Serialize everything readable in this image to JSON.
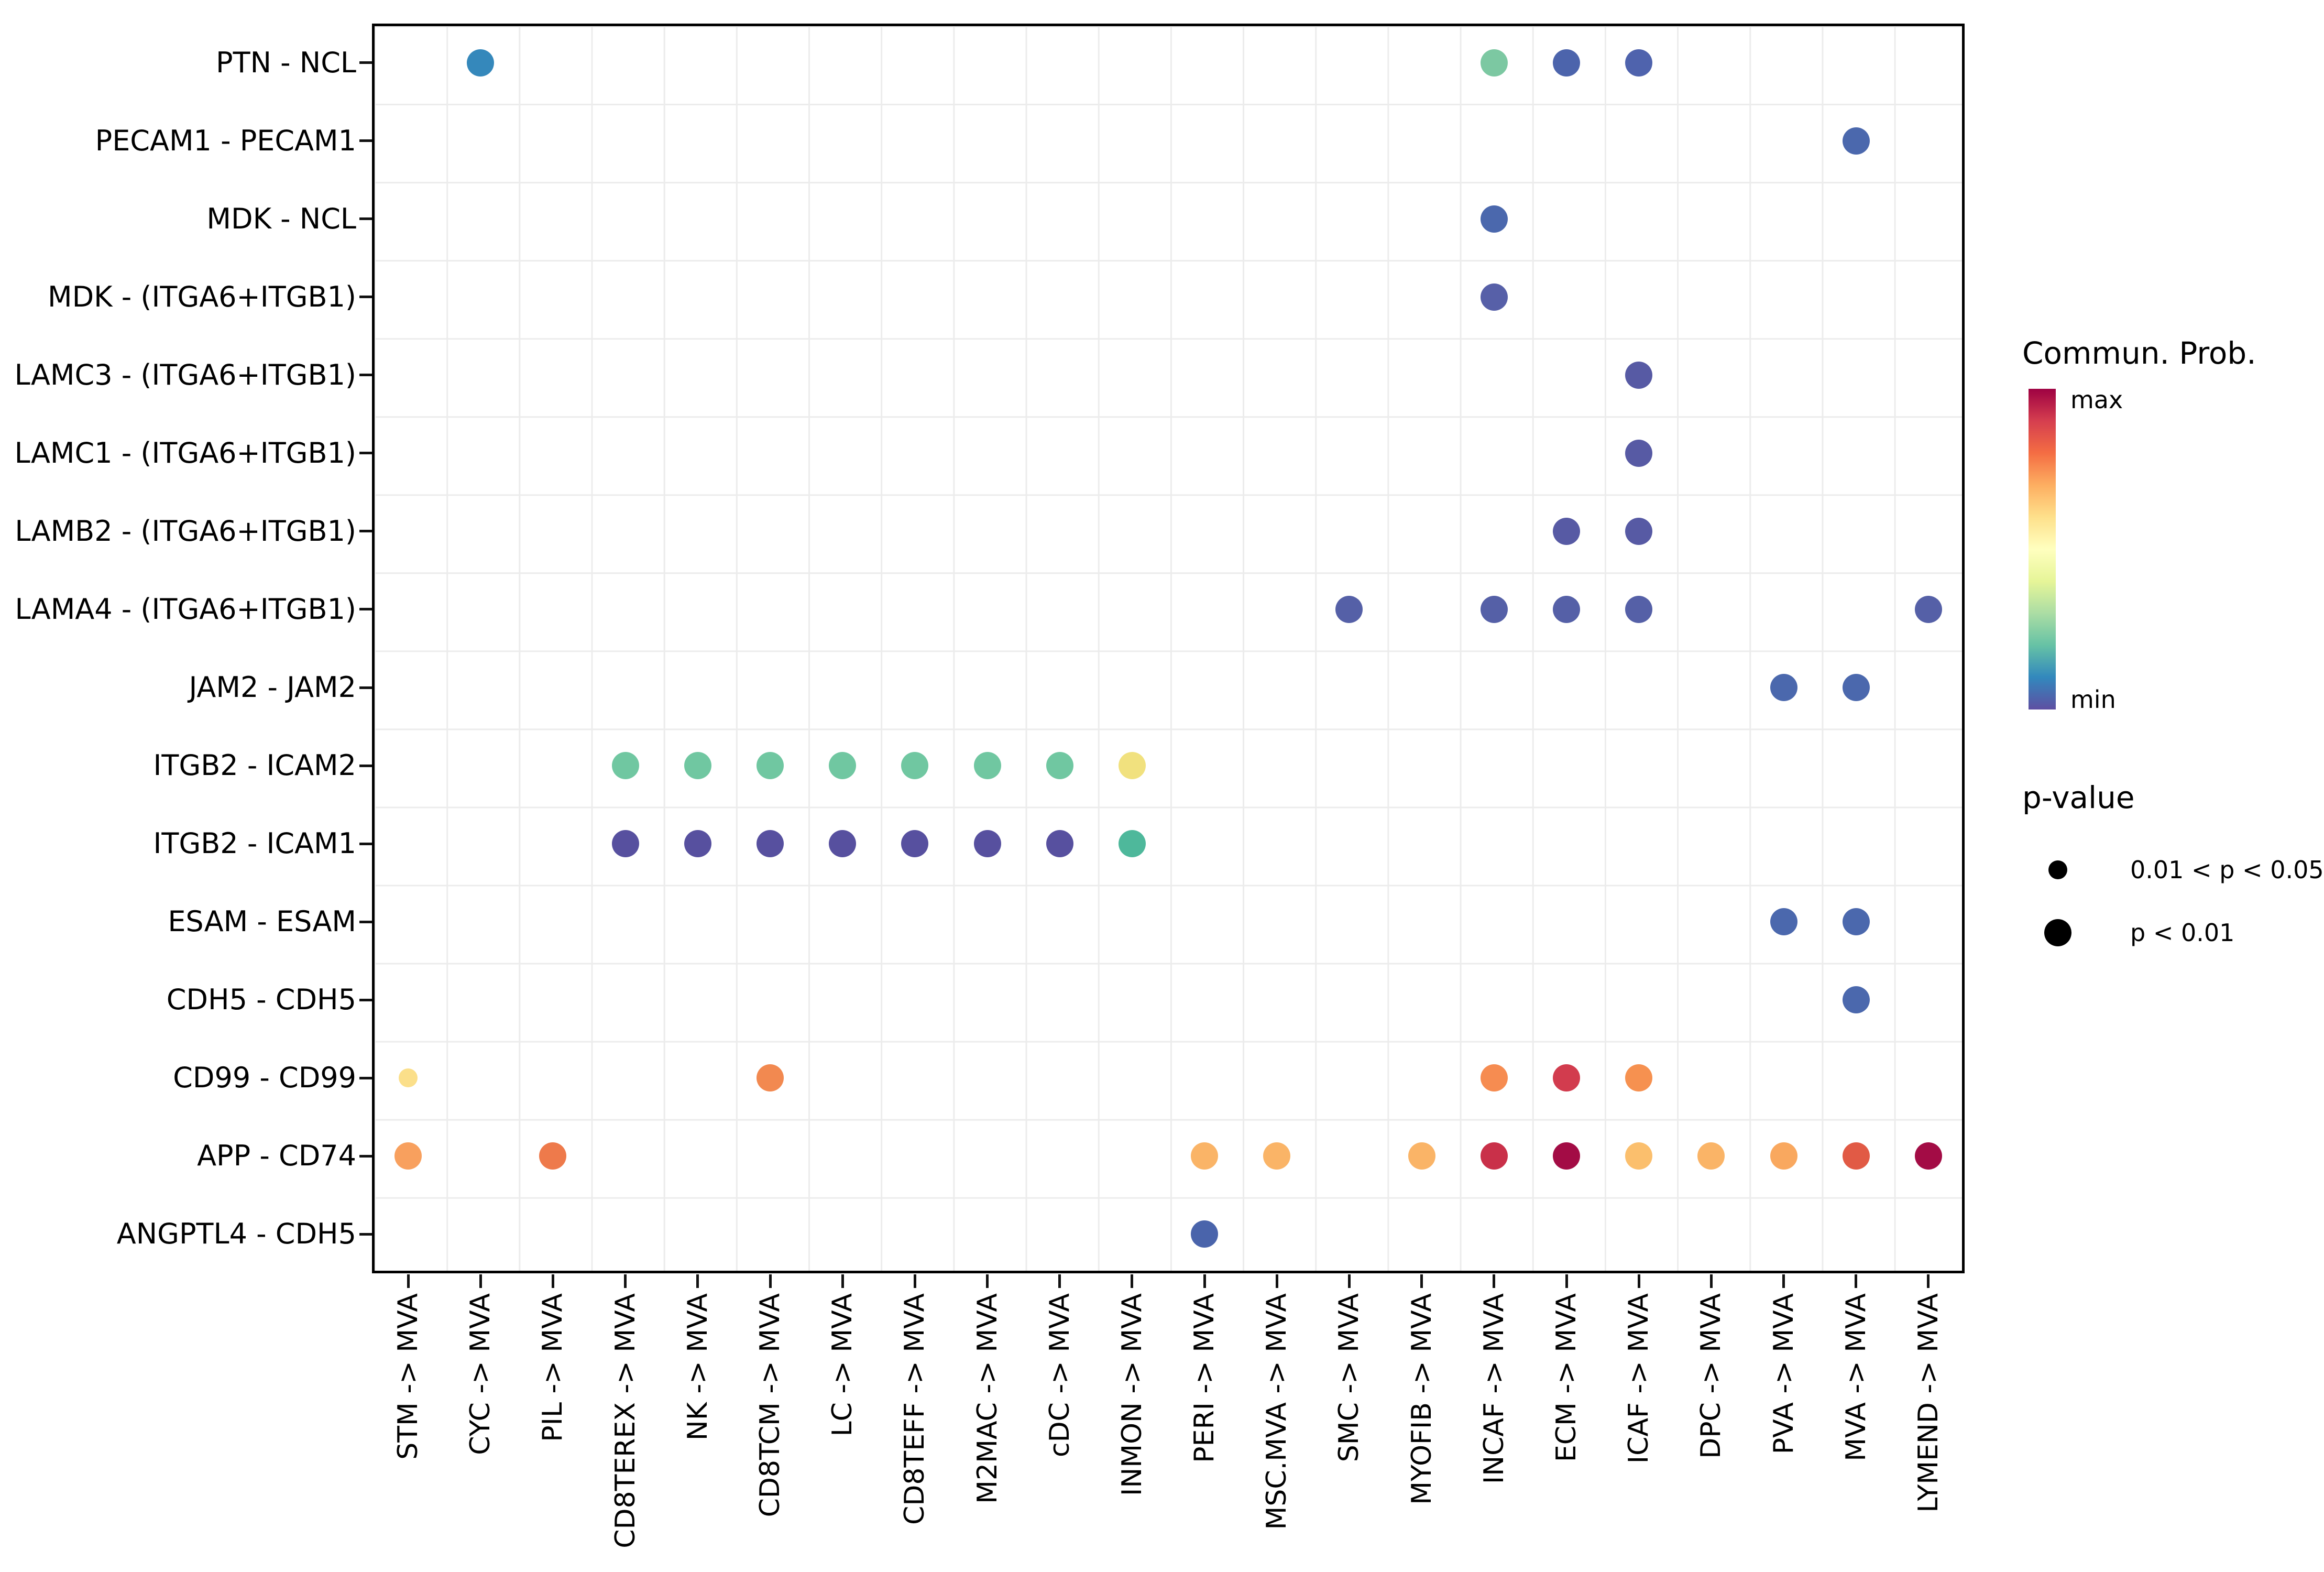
{
  "legend": {
    "color_title": "Commun. Prob.",
    "color_max_label": "max",
    "color_min_label": "min",
    "pvalue_title": "p-value",
    "pvalue_items": [
      {
        "label": "0.01 < p < 0.05",
        "size": "small"
      },
      {
        "label": "p < 0.01",
        "size": "large"
      }
    ]
  },
  "chart_data": {
    "type": "scatter",
    "subtype": "dot-plot (CellChat bubble plot)",
    "xlabel": "",
    "ylabel": "",
    "grid": "on",
    "legend_position": "right",
    "x_categories": [
      "STM -> MVA",
      "CYC -> MVA",
      "PIL -> MVA",
      "CD8TEREX -> MVA",
      "NK -> MVA",
      "CD8TCM -> MVA",
      "LC -> MVA",
      "CD8TEFF -> MVA",
      "M2MAC -> MVA",
      "cDC -> MVA",
      "INMON -> MVA",
      "PERI -> MVA",
      "MSC.MVA -> MVA",
      "SMC -> MVA",
      "MYOFIB -> MVA",
      "INCAF -> MVA",
      "ECM -> MVA",
      "ICAF -> MVA",
      "DPC -> MVA",
      "PVA -> MVA",
      "MVA -> MVA",
      "LYMEND -> MVA"
    ],
    "y_categories": [
      "PTN - NCL",
      "PECAM1 - PECAM1",
      "MDK - NCL",
      "MDK - (ITGA6+ITGB1)",
      "LAMC3 - (ITGA6+ITGB1)",
      "LAMC1 - (ITGA6+ITGB1)",
      "LAMB2 - (ITGA6+ITGB1)",
      "LAMA4 - (ITGA6+ITGB1)",
      "JAM2 - JAM2",
      "ITGB2 - ICAM2",
      "ITGB2 - ICAM1",
      "ESAM - ESAM",
      "CDH5 - CDH5",
      "CD99 - CD99",
      "APP - CD74",
      "ANGPTL4 - CDH5"
    ],
    "color_scale": {
      "name": "Spectral (reversed), max at top",
      "max_color": "#9e0142",
      "min_color": "#5e4fa2",
      "stops_top_to_bottom": [
        "#9e0142",
        "#d53e4f",
        "#f46d43",
        "#fdae61",
        "#fee08b",
        "#ffffbf",
        "#e6f598",
        "#abdda4",
        "#66c2a5",
        "#3288bd",
        "#5e4fa2"
      ]
    },
    "p_value_classes": [
      "0.01 < p < 0.05",
      "p < 0.01"
    ],
    "points": [
      {
        "x": "CYC -> MVA",
        "y": "PTN - NCL",
        "color": "#3588bb",
        "p": "p < 0.01"
      },
      {
        "x": "INCAF -> MVA",
        "y": "PTN - NCL",
        "color": "#7cc8a2",
        "p": "p < 0.01"
      },
      {
        "x": "ECM -> MVA",
        "y": "PTN - NCL",
        "color": "#4c64ac",
        "p": "p < 0.01"
      },
      {
        "x": "ICAF -> MVA",
        "y": "PTN - NCL",
        "color": "#4f63ad",
        "p": "p < 0.01"
      },
      {
        "x": "MVA -> MVA",
        "y": "PECAM1 - PECAM1",
        "color": "#4b68ad",
        "p": "p < 0.01"
      },
      {
        "x": "INCAF -> MVA",
        "y": "MDK - NCL",
        "color": "#4b68ad",
        "p": "p < 0.01"
      },
      {
        "x": "INCAF -> MVA",
        "y": "MDK - (ITGA6+ITGB1)",
        "color": "#5760a8",
        "p": "p < 0.01"
      },
      {
        "x": "ICAF -> MVA",
        "y": "LAMC3 - (ITGA6+ITGB1)",
        "color": "#575aa4",
        "p": "p < 0.01"
      },
      {
        "x": "ICAF -> MVA",
        "y": "LAMC1 - (ITGA6+ITGB1)",
        "color": "#575aa4",
        "p": "p < 0.01"
      },
      {
        "x": "ECM -> MVA",
        "y": "LAMB2 - (ITGA6+ITGB1)",
        "color": "#575aa4",
        "p": "p < 0.01"
      },
      {
        "x": "ICAF -> MVA",
        "y": "LAMB2 - (ITGA6+ITGB1)",
        "color": "#575aa4",
        "p": "p < 0.01"
      },
      {
        "x": "SMC -> MVA",
        "y": "LAMA4 - (ITGA6+ITGB1)",
        "color": "#5560a7",
        "p": "p < 0.01"
      },
      {
        "x": "INCAF -> MVA",
        "y": "LAMA4 - (ITGA6+ITGB1)",
        "color": "#5560a7",
        "p": "p < 0.01"
      },
      {
        "x": "ECM -> MVA",
        "y": "LAMA4 - (ITGA6+ITGB1)",
        "color": "#5560a7",
        "p": "p < 0.01"
      },
      {
        "x": "ICAF -> MVA",
        "y": "LAMA4 - (ITGA6+ITGB1)",
        "color": "#5560a7",
        "p": "p < 0.01"
      },
      {
        "x": "LYMEND -> MVA",
        "y": "LAMA4 - (ITGA6+ITGB1)",
        "color": "#5560a7",
        "p": "p < 0.01"
      },
      {
        "x": "PVA -> MVA",
        "y": "JAM2 - JAM2",
        "color": "#4b68ad",
        "p": "p < 0.01"
      },
      {
        "x": "MVA -> MVA",
        "y": "JAM2 - JAM2",
        "color": "#4b68ad",
        "p": "p < 0.01"
      },
      {
        "x": "CD8TEREX -> MVA",
        "y": "ITGB2 - ICAM2",
        "color": "#70c7a1",
        "p": "p < 0.01"
      },
      {
        "x": "NK -> MVA",
        "y": "ITGB2 - ICAM2",
        "color": "#70c7a1",
        "p": "p < 0.01"
      },
      {
        "x": "CD8TCM -> MVA",
        "y": "ITGB2 - ICAM2",
        "color": "#70c7a1",
        "p": "p < 0.01"
      },
      {
        "x": "LC -> MVA",
        "y": "ITGB2 - ICAM2",
        "color": "#70c7a1",
        "p": "p < 0.01"
      },
      {
        "x": "CD8TEFF -> MVA",
        "y": "ITGB2 - ICAM2",
        "color": "#70c7a1",
        "p": "p < 0.01"
      },
      {
        "x": "M2MAC -> MVA",
        "y": "ITGB2 - ICAM2",
        "color": "#70c7a1",
        "p": "p < 0.01"
      },
      {
        "x": "cDC -> MVA",
        "y": "ITGB2 - ICAM2",
        "color": "#70c7a1",
        "p": "p < 0.01"
      },
      {
        "x": "INMON -> MVA",
        "y": "ITGB2 - ICAM2",
        "color": "#f1e17e",
        "p": "p < 0.01"
      },
      {
        "x": "CD8TEREX -> MVA",
        "y": "ITGB2 - ICAM1",
        "color": "#57509f",
        "p": "p < 0.01"
      },
      {
        "x": "NK -> MVA",
        "y": "ITGB2 - ICAM1",
        "color": "#57509f",
        "p": "p < 0.01"
      },
      {
        "x": "CD8TCM -> MVA",
        "y": "ITGB2 - ICAM1",
        "color": "#57509f",
        "p": "p < 0.01"
      },
      {
        "x": "LC -> MVA",
        "y": "ITGB2 - ICAM1",
        "color": "#57509f",
        "p": "p < 0.01"
      },
      {
        "x": "CD8TEFF -> MVA",
        "y": "ITGB2 - ICAM1",
        "color": "#57509f",
        "p": "p < 0.01"
      },
      {
        "x": "M2MAC -> MVA",
        "y": "ITGB2 - ICAM1",
        "color": "#57509f",
        "p": "p < 0.01"
      },
      {
        "x": "cDC -> MVA",
        "y": "ITGB2 - ICAM1",
        "color": "#57509f",
        "p": "p < 0.01"
      },
      {
        "x": "INMON -> MVA",
        "y": "ITGB2 - ICAM1",
        "color": "#4eb89b",
        "p": "p < 0.01"
      },
      {
        "x": "PVA -> MVA",
        "y": "ESAM - ESAM",
        "color": "#4b68ad",
        "p": "p < 0.01"
      },
      {
        "x": "MVA -> MVA",
        "y": "ESAM - ESAM",
        "color": "#4b68ad",
        "p": "p < 0.01"
      },
      {
        "x": "MVA -> MVA",
        "y": "CDH5 - CDH5",
        "color": "#4b68ad",
        "p": "p < 0.01"
      },
      {
        "x": "STM -> MVA",
        "y": "CD99 - CD99",
        "color": "#fbdf8a",
        "p": "0.01 < p < 0.05"
      },
      {
        "x": "CD8TCM -> MVA",
        "y": "CD99 - CD99",
        "color": "#f28950",
        "p": "p < 0.01"
      },
      {
        "x": "INCAF -> MVA",
        "y": "CD99 - CD99",
        "color": "#f68c51",
        "p": "p < 0.01"
      },
      {
        "x": "ECM -> MVA",
        "y": "CD99 - CD99",
        "color": "#d23c4e",
        "p": "p < 0.01"
      },
      {
        "x": "ICAF -> MVA",
        "y": "CD99 - CD99",
        "color": "#f69150",
        "p": "p < 0.01"
      },
      {
        "x": "STM -> MVA",
        "y": "APP - CD74",
        "color": "#f8a05e",
        "p": "p < 0.01"
      },
      {
        "x": "PIL -> MVA",
        "y": "APP - CD74",
        "color": "#ee7a4b",
        "p": "p < 0.01"
      },
      {
        "x": "PERI -> MVA",
        "y": "APP - CD74",
        "color": "#fab467",
        "p": "p < 0.01"
      },
      {
        "x": "MSC.MVA -> MVA",
        "y": "APP - CD74",
        "color": "#fab467",
        "p": "p < 0.01"
      },
      {
        "x": "MYOFIB -> MVA",
        "y": "APP - CD74",
        "color": "#fab467",
        "p": "p < 0.01"
      },
      {
        "x": "INCAF -> MVA",
        "y": "APP - CD74",
        "color": "#c93049",
        "p": "p < 0.01"
      },
      {
        "x": "ECM -> MVA",
        "y": "APP - CD74",
        "color": "#a30c45",
        "p": "p < 0.01"
      },
      {
        "x": "ICAF -> MVA",
        "y": "APP - CD74",
        "color": "#fbbf6d",
        "p": "p < 0.01"
      },
      {
        "x": "DPC -> MVA",
        "y": "APP - CD74",
        "color": "#fab467",
        "p": "p < 0.01"
      },
      {
        "x": "PVA -> MVA",
        "y": "APP - CD74",
        "color": "#f9a85f",
        "p": "p < 0.01"
      },
      {
        "x": "MVA -> MVA",
        "y": "APP - CD74",
        "color": "#e15a45",
        "p": "p < 0.01"
      },
      {
        "x": "LYMEND -> MVA",
        "y": "APP - CD74",
        "color": "#a30c45",
        "p": "p < 0.01"
      },
      {
        "x": "PERI -> MVA",
        "y": "ANGPTL4 - CDH5",
        "color": "#4a64ab",
        "p": "p < 0.01"
      }
    ]
  }
}
